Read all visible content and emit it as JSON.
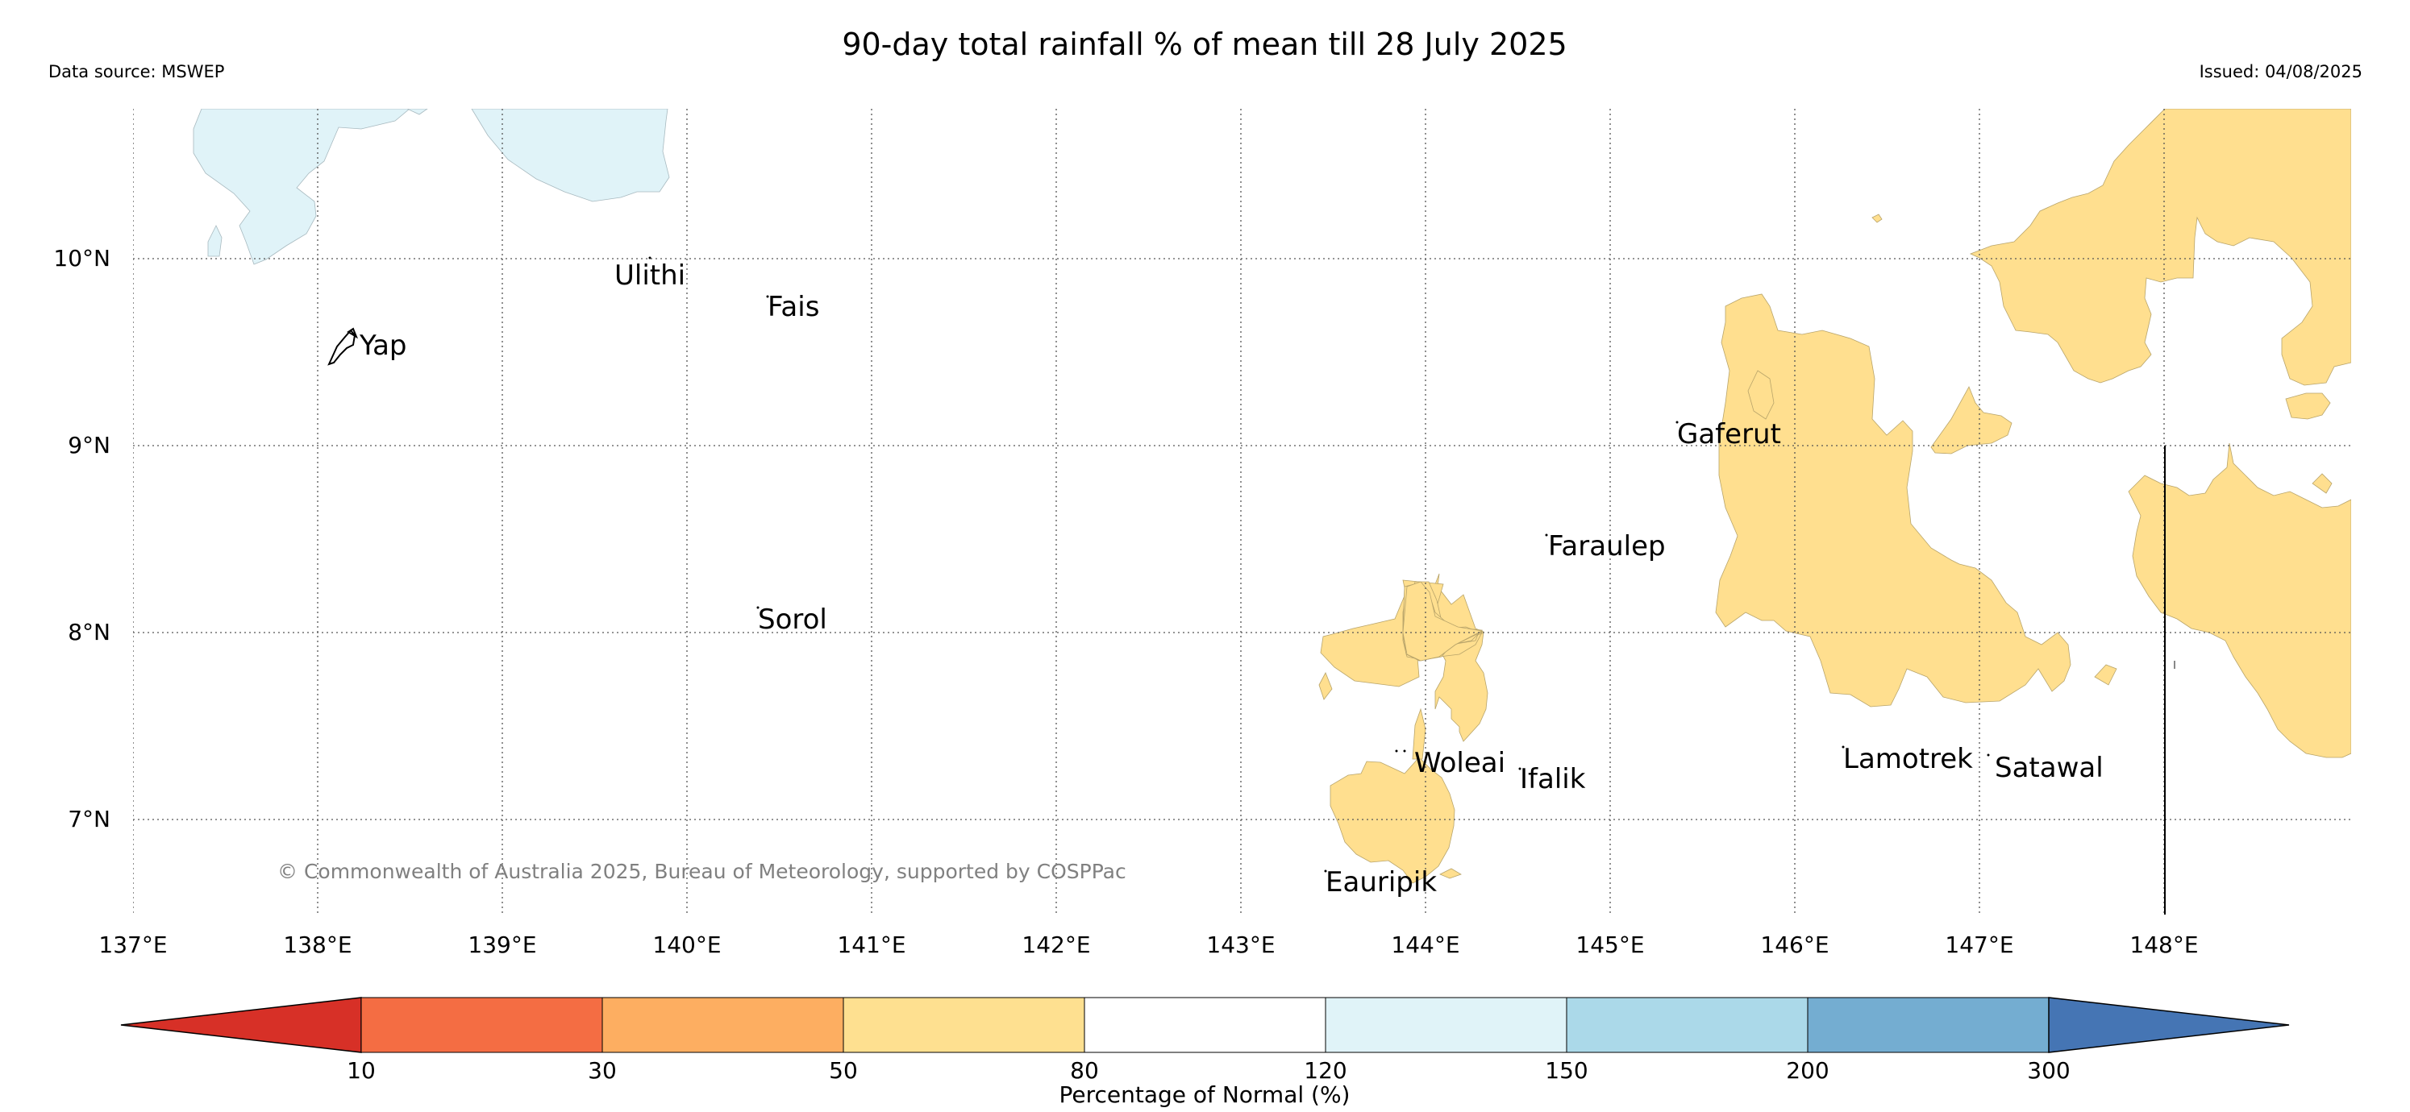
{
  "title": "90-day total rainfall % of mean till 28 July 2025",
  "data_source": "Data source: MSWEP",
  "issued": "Issued: 04/08/2025",
  "copyright": "© Commonwealth of Australia 2025, Bureau of Meteorology, supported by COSPPac",
  "lon_ticks": [
    "137°E",
    "138°E",
    "139°E",
    "140°E",
    "141°E",
    "142°E",
    "143°E",
    "144°E",
    "145°E",
    "146°E",
    "147°E",
    "148°E"
  ],
  "lat_ticks": [
    "7°N",
    "8°N",
    "9°N",
    "10°N"
  ],
  "places": {
    "yap": "Yap",
    "ulithi": "Ulithi",
    "fais": "Fais",
    "gaferut": "Gaferut",
    "faraulep": "Faraulep",
    "sorol": "Sorol",
    "woleai": "Woleai",
    "ifalik": "Ifalik",
    "eauripik": "Eauripik",
    "lamotrek": "Lamotrek",
    "satawal": "Satawal"
  },
  "legend": {
    "label": "Percentage of Normal (%)",
    "ticks": [
      "10",
      "30",
      "50",
      "80",
      "120",
      "150",
      "200",
      "300"
    ],
    "colors": [
      "#d73027",
      "#f46d43",
      "#fdae61",
      "#fee090",
      "#ffffff",
      "#e0f3f8",
      "#abd9e9",
      "#74add1",
      "#4575b4"
    ]
  }
}
